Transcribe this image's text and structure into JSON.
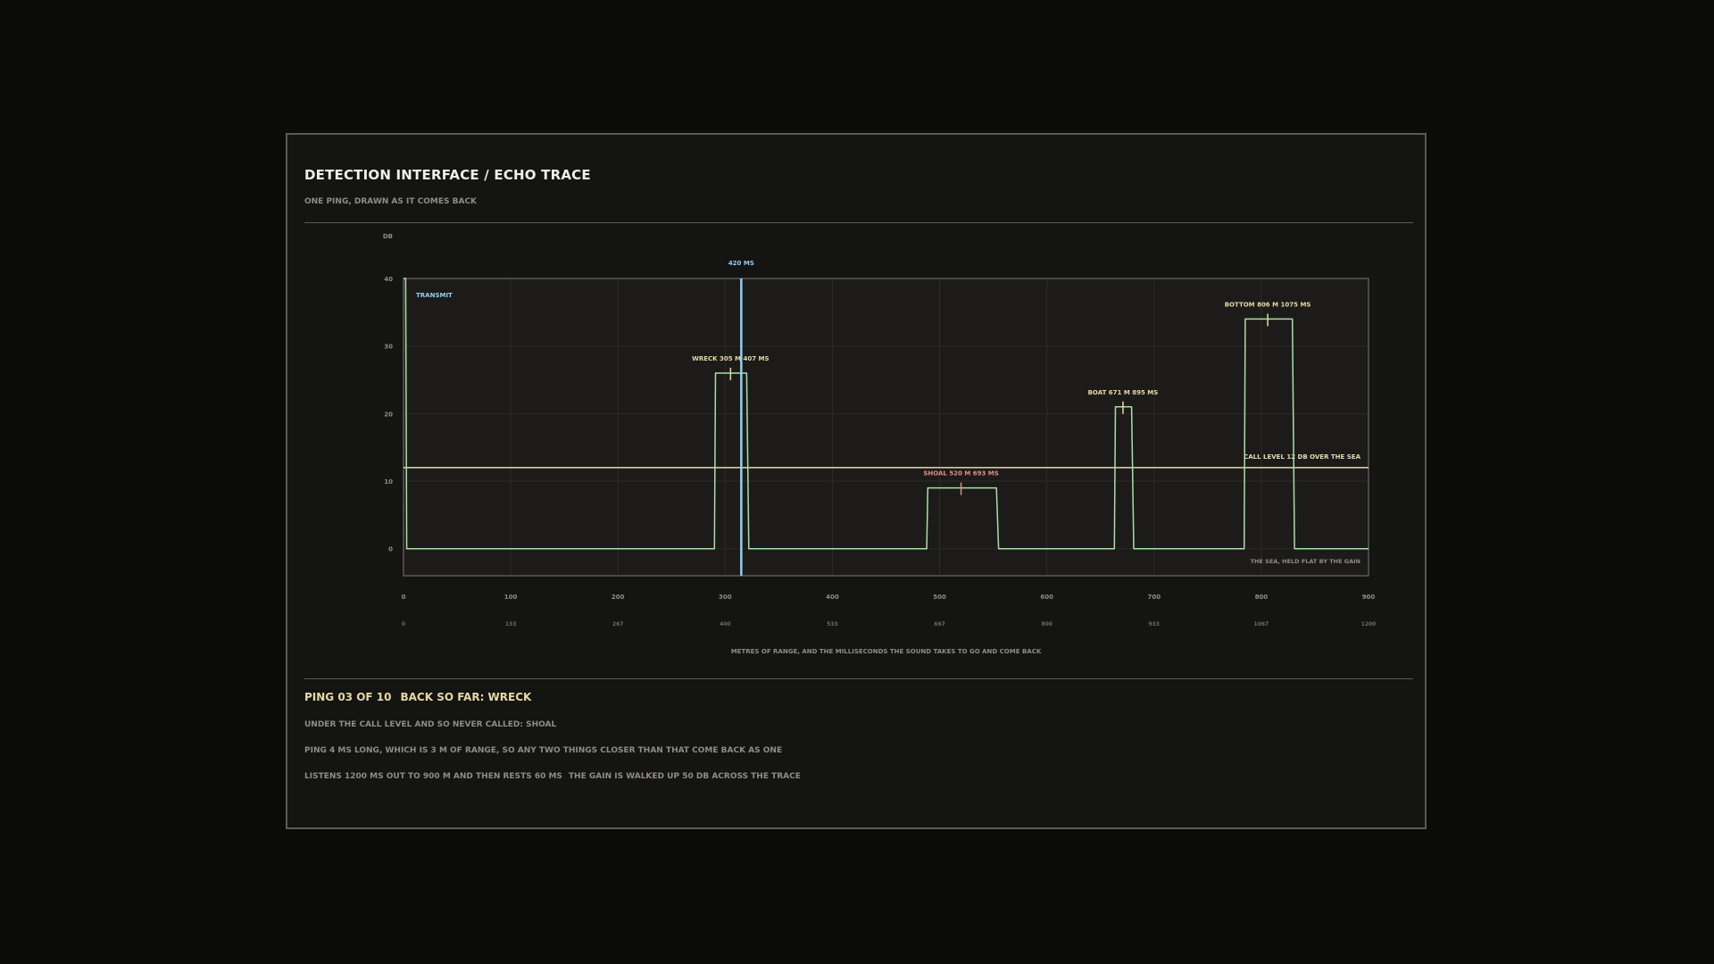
{
  "header": {
    "title": "DETECTION INTERFACE / ECHO TRACE",
    "subtitle": "ONE PING, DRAWN AS IT COMES BACK"
  },
  "footer": {
    "status_ping": "PING 03 OF 10",
    "status_back": "BACK SO FAR: WRECK",
    "note_uncalled": "UNDER THE CALL LEVEL AND SO NEVER CALLED: SHOAL",
    "note_resolution": "PING 4 MS LONG, WHICH IS 3 M OF RANGE, SO ANY TWO THINGS CLOSER THAN THAT COME BACK AS ONE",
    "note_listen": "LISTENS 1200 MS OUT TO 900 M AND THEN RESTS 60 MS",
    "note_gain": "THE GAIN IS WALKED UP 50 DB ACROSS THE TRACE"
  },
  "colors": {
    "trace": "#a9e0a4",
    "cursor": "#8fd0f0",
    "threshold": "#e2dcae",
    "marker": "#e5d9a4",
    "uncalled": "#e08f82",
    "transmit": "#8fd0f0",
    "grid": "#2c2b28",
    "frame": "#5a5955",
    "axis_text": "#8e8c85"
  },
  "chart_data": {
    "type": "line",
    "ylabel": "DB",
    "xlabel": "METRES OF RANGE, AND THE MILLISECONDS THE SOUND TAKES TO GO AND COME BACK",
    "xlim": [
      0,
      900
    ],
    "ylim": [
      -4,
      40
    ],
    "x_ticks": [
      0,
      100,
      200,
      300,
      400,
      500,
      600,
      700,
      800,
      900
    ],
    "x2_ticks": [
      "0",
      "133",
      "267",
      "400",
      "533",
      "667",
      "800",
      "933",
      "1067",
      "1200"
    ],
    "y_ticks": [
      0,
      10,
      20,
      30,
      40
    ],
    "grid": true,
    "series": [
      {
        "x": [
          0,
          2,
          3,
          5,
          290,
          291,
          293,
          319,
          320,
          322,
          488,
          489,
          491,
          552,
          553,
          555,
          663,
          664,
          666,
          678,
          679,
          681,
          784,
          785,
          787,
          828,
          829,
          831,
          900
        ],
        "y": [
          40,
          40,
          0,
          0,
          0,
          26,
          26,
          26,
          26,
          0,
          0,
          9,
          9,
          9,
          9,
          0,
          0,
          21,
          21,
          21,
          21,
          0,
          0,
          34,
          34,
          34,
          34,
          0,
          0
        ]
      }
    ],
    "cursor": {
      "x": 315,
      "label": "420 MS"
    },
    "threshold": {
      "y": 12,
      "label": "CALL LEVEL 12 DB OVER THE SEA"
    },
    "floor_label": "THE SEA, HELD FLAT BY THE GAIN",
    "transmit_label": "TRANSMIT",
    "targets": [
      {
        "name": "WRECK 305 M",
        "time": "407 MS",
        "x": 305,
        "y": 26,
        "called": true
      },
      {
        "name": "SHOAL 520 M",
        "time": "693 MS",
        "x": 520,
        "y": 9,
        "called": false
      },
      {
        "name": "BOAT 671 M",
        "time": "895 MS",
        "x": 671,
        "y": 21,
        "called": true
      },
      {
        "name": "BOTTOM 806 M",
        "time": "1075 MS",
        "x": 806,
        "y": 34,
        "called": true
      }
    ]
  }
}
